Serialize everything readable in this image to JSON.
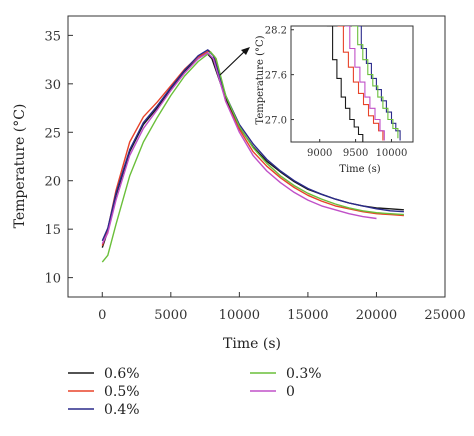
{
  "chart_data": {
    "type": "line",
    "xlabel": "Time (s)",
    "ylabel": "Temperature (°C)",
    "xlim": [
      -2500,
      25000
    ],
    "ylim": [
      8,
      37
    ],
    "xticks": [
      "0",
      "5000",
      "10000",
      "15000",
      "20000",
      "25000"
    ],
    "yticks": [
      "10",
      "15",
      "20",
      "25",
      "30",
      "35"
    ],
    "grid": false,
    "legend_position": "bottom",
    "series": [
      {
        "name": "0.6%",
        "color": "#1a1a1a",
        "x": [
          0,
          400,
          1000,
          2000,
          3000,
          4000,
          5000,
          6000,
          7000,
          7600,
          8000,
          9000,
          10000,
          11000,
          12000,
          13000,
          14000,
          15000,
          16000,
          17000,
          18000,
          19000,
          20000,
          21000,
          22000
        ],
        "y": [
          13.1,
          14.8,
          18.5,
          23.0,
          25.8,
          27.5,
          29.5,
          31.3,
          32.6,
          33.2,
          32.6,
          28.5,
          25.5,
          23.5,
          22.0,
          20.9,
          19.9,
          19.1,
          18.6,
          18.1,
          17.7,
          17.4,
          17.2,
          17.1,
          17.0
        ]
      },
      {
        "name": "0.5%",
        "color": "#e8432a",
        "x": [
          0,
          400,
          1000,
          2000,
          3000,
          4000,
          5000,
          6000,
          7000,
          7800,
          8200,
          9000,
          10000,
          11000,
          12000,
          13000,
          14000,
          15000,
          16000,
          17000,
          18000,
          19000,
          20000,
          21000,
          22000
        ],
        "y": [
          13.3,
          15.0,
          19.0,
          24.0,
          26.6,
          28.1,
          29.8,
          31.5,
          32.8,
          33.4,
          32.8,
          28.2,
          25.3,
          23.0,
          21.5,
          20.3,
          19.3,
          18.5,
          17.9,
          17.4,
          17.1,
          16.8,
          16.6,
          16.5,
          16.4
        ]
      },
      {
        "name": "0.4%",
        "color": "#2a2a8a",
        "x": [
          0,
          400,
          1000,
          2000,
          3000,
          4000,
          5000,
          6000,
          7000,
          7700,
          8100,
          9000,
          10000,
          11000,
          12000,
          13000,
          14000,
          15000,
          16000,
          17000,
          18000,
          19000,
          20000,
          21000,
          22000
        ],
        "y": [
          13.8,
          15.1,
          18.7,
          23.2,
          26.0,
          27.7,
          29.6,
          31.4,
          32.9,
          33.5,
          32.9,
          28.8,
          25.8,
          23.8,
          22.2,
          21.0,
          20.0,
          19.2,
          18.6,
          18.1,
          17.7,
          17.4,
          17.1,
          16.9,
          16.8
        ]
      },
      {
        "name": "0.3%",
        "color": "#6abf3a",
        "x": [
          0,
          400,
          1000,
          2000,
          3000,
          4000,
          5000,
          6000,
          7000,
          7900,
          8300,
          9000,
          10000,
          11000,
          12000,
          13000,
          14000,
          15000,
          16000,
          17000,
          18000,
          19000,
          20000,
          21000,
          22000
        ],
        "y": [
          11.6,
          12.3,
          15.5,
          20.5,
          24.0,
          26.5,
          28.8,
          30.8,
          32.3,
          33.3,
          32.6,
          28.8,
          25.6,
          23.4,
          21.8,
          20.5,
          19.5,
          18.7,
          18.1,
          17.6,
          17.2,
          16.9,
          16.7,
          16.6,
          16.5
        ]
      },
      {
        "name": "0",
        "color": "#c050c8",
        "x": [
          0,
          400,
          1000,
          2000,
          3000,
          4000,
          5000,
          6000,
          7000,
          7700,
          8100,
          9000,
          10000,
          11000,
          12000,
          13000,
          14000,
          15000,
          16000,
          17000,
          18000,
          19000,
          20000
        ],
        "y": [
          13.5,
          14.6,
          18.0,
          22.6,
          25.4,
          27.3,
          29.3,
          31.1,
          32.6,
          33.2,
          32.6,
          28.2,
          25.0,
          22.6,
          21.0,
          19.8,
          18.8,
          18.0,
          17.4,
          17.0,
          16.6,
          16.3,
          16.1
        ]
      }
    ],
    "inset": {
      "xlim": [
        8600,
        10300
      ],
      "ylim": [
        26.7,
        28.25
      ],
      "xticks": [
        "9000",
        "9500",
        "10000"
      ],
      "yticks": [
        "27.0",
        "27.6",
        "28.2"
      ],
      "xlabel": "Time (s)",
      "ylabel": "Temperature (°C)",
      "series": [
        {
          "name": "0.6%",
          "color": "#1a1a1a",
          "x": [
            9100,
            9180,
            9240,
            9300,
            9360,
            9420,
            9480,
            9540,
            9600
          ],
          "y": [
            28.25,
            27.8,
            27.55,
            27.3,
            27.15,
            27.0,
            26.9,
            26.8,
            26.7
          ]
        },
        {
          "name": "0.5%",
          "color": "#e8432a",
          "x": [
            9250,
            9330,
            9400,
            9470,
            9540,
            9610,
            9680,
            9750,
            9820,
            9880
          ],
          "y": [
            28.25,
            27.9,
            27.7,
            27.5,
            27.35,
            27.2,
            27.05,
            26.95,
            26.85,
            26.72
          ]
        },
        {
          "name": "0.4%",
          "color": "#2a2a8a",
          "x": [
            9500,
            9580,
            9650,
            9720,
            9790,
            9860,
            9930,
            10000,
            10060,
            10120
          ],
          "y": [
            28.25,
            27.95,
            27.75,
            27.55,
            27.4,
            27.25,
            27.1,
            26.95,
            26.85,
            26.72
          ]
        },
        {
          "name": "0.3%",
          "color": "#6abf3a",
          "x": [
            9450,
            9530,
            9600,
            9670,
            9740,
            9810,
            9880,
            9950,
            10020,
            10090
          ],
          "y": [
            28.25,
            28.0,
            27.8,
            27.6,
            27.45,
            27.3,
            27.15,
            27.0,
            26.88,
            26.75
          ]
        },
        {
          "name": "0",
          "color": "#c050c8",
          "x": [
            9350,
            9420,
            9490,
            9560,
            9630,
            9700,
            9770,
            9840,
            9900
          ],
          "y": [
            28.25,
            27.95,
            27.7,
            27.5,
            27.3,
            27.15,
            27.0,
            26.85,
            26.72
          ]
        }
      ]
    }
  }
}
